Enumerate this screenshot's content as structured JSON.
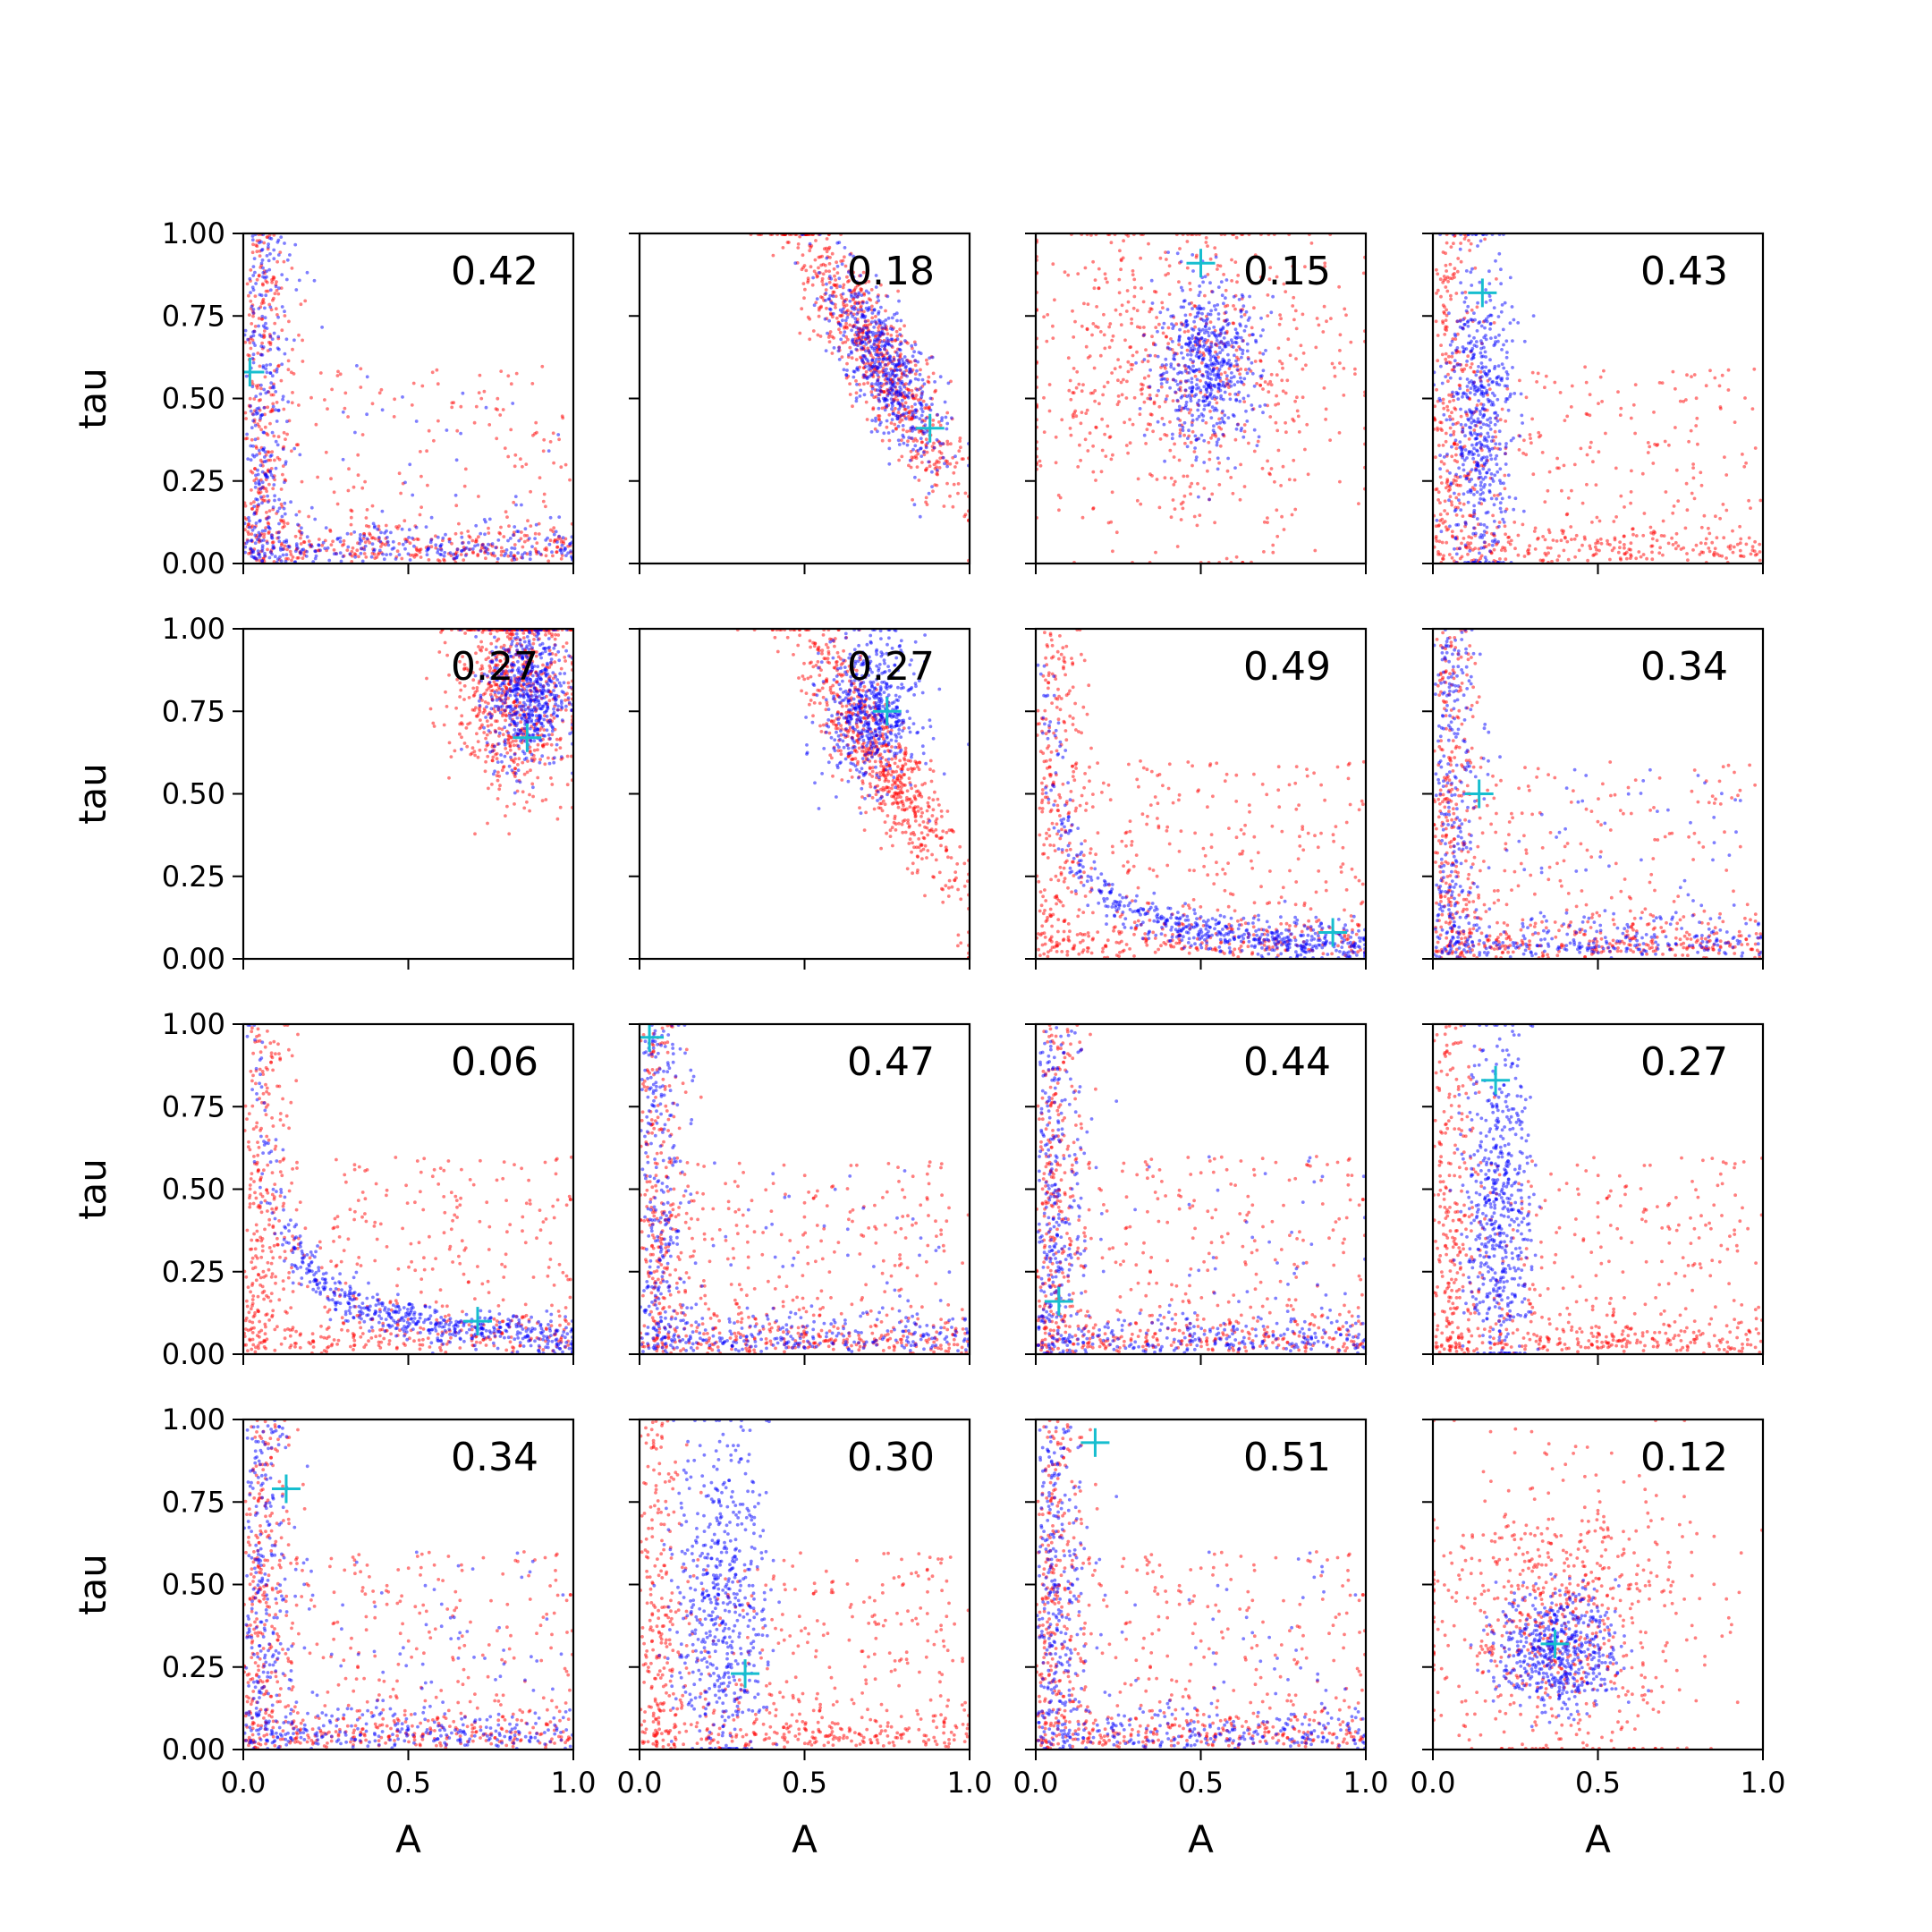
{
  "chart_data": {
    "type": "scatter",
    "layout": "4x4 grid of subplots",
    "xlabel": "A",
    "ylabel": "tau",
    "xlim": [
      0,
      1
    ],
    "ylim": [
      0,
      1
    ],
    "x_ticks": [
      "0.0",
      "0.5",
      "1.0"
    ],
    "y_ticks": [
      "0.00",
      "0.25",
      "0.50",
      "0.75",
      "1.00"
    ],
    "x_tick_values": [
      0,
      0.5,
      1
    ],
    "y_tick_values": [
      0,
      0.25,
      0.5,
      0.75,
      1
    ],
    "colors": {
      "series_red": "#ff0000",
      "series_blue": "#0000ff",
      "marker": "#17becf",
      "axes": "#000000"
    },
    "grid": false,
    "legend": "none",
    "panels": [
      {
        "label": "0.42",
        "marker": [
          0.02,
          0.58
        ],
        "red": {
          "shape": "L",
          "w": 0.75
        },
        "blue": {
          "shape": "L",
          "w": 0.92
        }
      },
      {
        "label": "0.18",
        "marker": [
          0.88,
          0.41
        ],
        "red": {
          "shape": "diag",
          "cx": 0.72,
          "cy": 0.62,
          "sx": 0.12,
          "sy": 0.2
        },
        "blue": {
          "shape": "diag",
          "cx": 0.74,
          "cy": 0.6,
          "sx": 0.07,
          "sy": 0.13
        }
      },
      {
        "label": "0.15",
        "marker": [
          0.5,
          0.91
        ],
        "red": {
          "shape": "wide",
          "cx": 0.45,
          "cy": 0.58,
          "sx": 0.25,
          "sy": 0.25
        },
        "blue": {
          "shape": "blob",
          "cx": 0.52,
          "cy": 0.6,
          "sx": 0.08,
          "sy": 0.12
        }
      },
      {
        "label": "0.43",
        "marker": [
          0.15,
          0.82
        ],
        "red": {
          "shape": "L",
          "w": 0.65
        },
        "blue": {
          "shape": "vert",
          "cx": 0.14,
          "sx": 0.05
        }
      },
      {
        "label": "0.27",
        "marker": [
          0.86,
          0.67
        ],
        "red": {
          "shape": "blob",
          "cx": 0.82,
          "cy": 0.82,
          "sx": 0.09,
          "sy": 0.16
        },
        "blue": {
          "shape": "blob",
          "cx": 0.86,
          "cy": 0.8,
          "sx": 0.06,
          "sy": 0.11
        }
      },
      {
        "label": "0.27",
        "marker": [
          0.75,
          0.75
        ],
        "red": {
          "shape": "diag",
          "cx": 0.72,
          "cy": 0.62,
          "sx": 0.12,
          "sy": 0.2
        },
        "blue": {
          "shape": "blob",
          "cx": 0.7,
          "cy": 0.75,
          "sx": 0.07,
          "sy": 0.11
        }
      },
      {
        "label": "0.49",
        "marker": [
          0.9,
          0.08
        ],
        "red": {
          "shape": "L",
          "w": 0.55
        },
        "blue": {
          "shape": "hyper",
          "k": 0.045
        }
      },
      {
        "label": "0.34",
        "marker": [
          0.14,
          0.5
        ],
        "red": {
          "shape": "L",
          "w": 0.7
        },
        "blue": {
          "shape": "L",
          "w": 0.88
        }
      },
      {
        "label": "0.06",
        "marker": [
          0.71,
          0.1
        ],
        "red": {
          "shape": "L",
          "w": 0.55
        },
        "blue": {
          "shape": "hyper",
          "k": 0.055
        }
      },
      {
        "label": "0.47",
        "marker": [
          0.03,
          0.96
        ],
        "red": {
          "shape": "L",
          "w": 0.6
        },
        "blue": {
          "shape": "L",
          "w": 0.9
        }
      },
      {
        "label": "0.44",
        "marker": [
          0.07,
          0.16
        ],
        "red": {
          "shape": "L",
          "w": 0.6
        },
        "blue": {
          "shape": "L",
          "w": 0.9
        }
      },
      {
        "label": "0.27",
        "marker": [
          0.19,
          0.83
        ],
        "red": {
          "shape": "L",
          "w": 0.6
        },
        "blue": {
          "shape": "vert",
          "cx": 0.2,
          "sx": 0.05
        }
      },
      {
        "label": "0.34",
        "marker": [
          0.13,
          0.79
        ],
        "red": {
          "shape": "L",
          "w": 0.6
        },
        "blue": {
          "shape": "L",
          "w": 0.85
        }
      },
      {
        "label": "0.30",
        "marker": [
          0.32,
          0.23
        ],
        "red": {
          "shape": "L",
          "w": 0.55
        },
        "blue": {
          "shape": "vert",
          "cx": 0.25,
          "sx": 0.07
        }
      },
      {
        "label": "0.51",
        "marker": [
          0.18,
          0.93
        ],
        "red": {
          "shape": "L",
          "w": 0.6
        },
        "blue": {
          "shape": "L",
          "w": 0.88
        }
      },
      {
        "label": "0.12",
        "marker": [
          0.37,
          0.32
        ],
        "red": {
          "shape": "wide",
          "cx": 0.38,
          "cy": 0.4,
          "sx": 0.2,
          "sy": 0.22
        },
        "blue": {
          "shape": "blob",
          "cx": 0.38,
          "cy": 0.3,
          "sx": 0.09,
          "sy": 0.09
        }
      }
    ]
  }
}
